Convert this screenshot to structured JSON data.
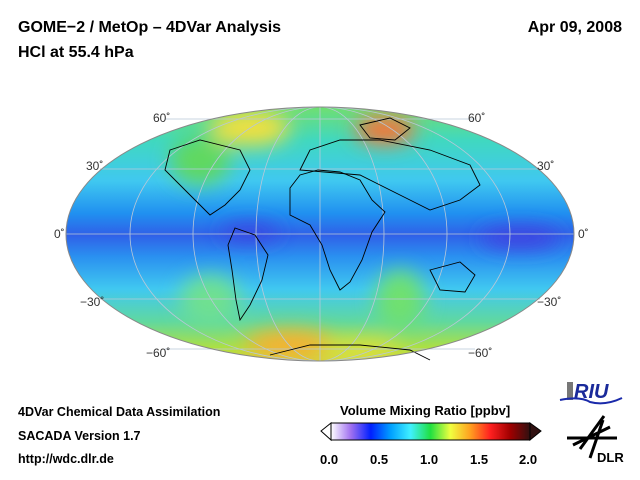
{
  "header": {
    "title": "GOME−2 / MetOp – 4DVar Analysis",
    "subtitle": "HCl at 55.4 hPa",
    "date": "Apr 09, 2008"
  },
  "map": {
    "projection": "Hammer-Aitoff",
    "lat_labels": {
      "n60": "60˚",
      "n30": "30˚",
      "eq": "0˚",
      "s30": "−30˚",
      "s60": "−60˚"
    }
  },
  "footer": {
    "line1": "4DVar Chemical Data Assimilation",
    "line2": "SACADA Version 1.7",
    "line3": "http://wdc.dlr.de"
  },
  "colorbar": {
    "title": "Volume Mixing Ratio [ppbv]",
    "ticks": [
      "0.0",
      "0.5",
      "1.0",
      "1.5",
      "2.0"
    ],
    "range": [
      0.0,
      2.0
    ],
    "colors": [
      "#ffffff",
      "#a070f0",
      "#0020ff",
      "#00a0ff",
      "#40f0ff",
      "#20e040",
      "#f0ff40",
      "#ffa020",
      "#ff2020",
      "#a00000",
      "#301010"
    ]
  },
  "logos": {
    "riu": "RIU",
    "dlr": "DLR"
  }
}
